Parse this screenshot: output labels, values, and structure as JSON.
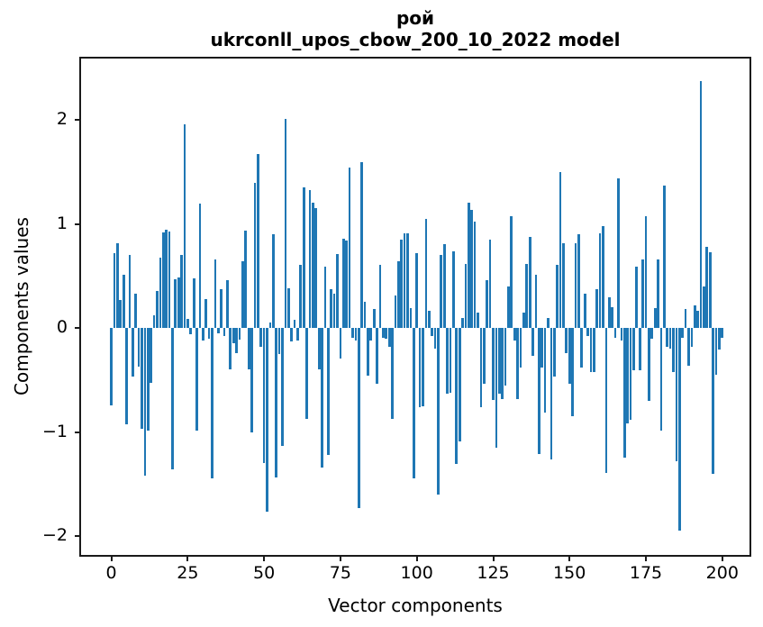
{
  "chart_data": {
    "type": "bar",
    "title": "рой",
    "subtitle": "ukrconll_upos_cbow_200_10_2022 model",
    "xlabel": "Vector components",
    "ylabel": "Components values",
    "x_tick_labels": [
      0,
      25,
      50,
      75,
      100,
      125,
      150,
      175,
      200
    ],
    "y_tick_labels": [
      -2,
      -1,
      0,
      1,
      2
    ],
    "xlim": [
      -10.5,
      209.5
    ],
    "ylim": [
      -2.2,
      2.61
    ],
    "bar_color": "#1f77b4",
    "bar_width": 0.8,
    "values": [
      -0.74,
      0.72,
      0.82,
      0.27,
      0.51,
      -0.93,
      0.7,
      -0.47,
      0.33,
      -0.37,
      -0.97,
      -1.42,
      -0.99,
      -0.53,
      0.12,
      0.36,
      0.68,
      0.92,
      0.95,
      0.93,
      -1.36,
      0.47,
      0.49,
      0.7,
      1.96,
      0.09,
      -0.06,
      0.48,
      -0.99,
      1.2,
      -0.12,
      0.28,
      -0.1,
      -1.45,
      0.66,
      -0.05,
      0.37,
      -0.08,
      0.46,
      -0.4,
      -0.15,
      -0.24,
      -0.11,
      0.64,
      0.94,
      -0.4,
      -1.0,
      1.4,
      1.67,
      -0.18,
      -1.3,
      -1.77,
      0.05,
      0.9,
      -1.44,
      -0.25,
      -1.13,
      2.01,
      0.38,
      -0.13,
      0.08,
      -0.12,
      0.61,
      1.35,
      -0.87,
      1.33,
      1.21,
      1.15,
      -0.4,
      -1.34,
      0.59,
      -1.22,
      0.37,
      0.33,
      0.71,
      -0.29,
      0.86,
      0.84,
      1.54,
      -0.09,
      -0.12,
      -1.73,
      1.6,
      0.25,
      -0.46,
      -0.12,
      0.18,
      -0.54,
      0.61,
      -0.09,
      -0.1,
      -0.18,
      -0.87,
      0.31,
      0.64,
      0.85,
      0.91,
      0.91,
      0.19,
      -1.45,
      0.72,
      -0.76,
      -0.75,
      1.05,
      0.17,
      -0.08,
      -0.2,
      -1.6,
      0.7,
      0.81,
      -0.63,
      -0.62,
      0.74,
      -1.31,
      -1.09,
      0.1,
      0.62,
      1.21,
      1.14,
      1.02,
      0.15,
      -0.76,
      -0.54,
      0.46,
      0.85,
      -0.69,
      -1.15,
      -0.63,
      -0.68,
      -0.55,
      0.4,
      1.08,
      -0.12,
      -0.68,
      -0.38,
      0.15,
      0.62,
      0.88,
      -0.27,
      0.51,
      -1.21,
      -0.38,
      -0.81,
      0.1,
      -1.26,
      -0.47,
      0.61,
      1.5,
      0.82,
      -0.24,
      -0.54,
      -0.85,
      0.82,
      0.9,
      -0.38,
      0.33,
      -0.08,
      -0.42,
      -0.42,
      0.37,
      0.91,
      0.98,
      -1.39,
      0.3,
      0.2,
      -0.09,
      1.44,
      -0.12,
      -1.25,
      -0.92,
      -0.88,
      -0.41,
      0.59,
      -0.41,
      0.66,
      1.08,
      -0.7,
      -0.1,
      0.19,
      0.66,
      -0.99,
      1.37,
      -0.18,
      -0.2,
      -0.42,
      -1.28,
      -1.95,
      -0.09,
      0.18,
      -0.36,
      -0.18,
      0.22,
      0.17,
      2.38,
      0.4,
      0.78,
      0.73,
      -1.4,
      -0.45,
      -0.21,
      -0.09
    ]
  }
}
